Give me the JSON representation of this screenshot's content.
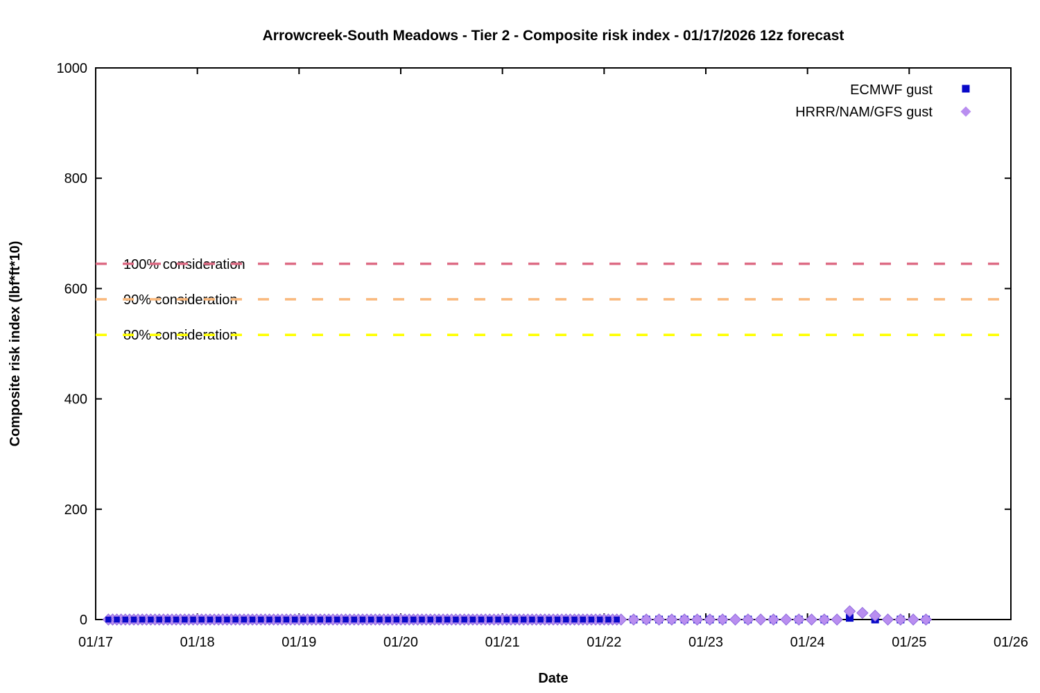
{
  "page": {
    "background": "#ffffff"
  },
  "chart_data": {
    "type": "scatter",
    "title": "Arrowcreek-South Meadows - Tier 2 - Composite risk index - 01/17/2026 12z forecast",
    "xlabel": "Date",
    "ylabel": "Composite risk index (lbf*ft*10)",
    "x_tick_labels": [
      "01/17",
      "01/18",
      "01/19",
      "01/20",
      "01/21",
      "01/22",
      "01/23",
      "01/24",
      "01/25",
      "01/26"
    ],
    "x_range_days": [
      17,
      26
    ],
    "ylim": [
      0,
      1000
    ],
    "y_ticks": [
      0,
      200,
      400,
      600,
      800,
      1000
    ],
    "grid": false,
    "legend_position": "top-right-inside",
    "axis_color": "#000000",
    "thresholds": [
      {
        "label": "100% consideration",
        "value": 645,
        "color": "#dd6b84"
      },
      {
        "label": "90% consideration",
        "value": 580.5,
        "color": "#fab87c"
      },
      {
        "label": "80% consideration",
        "value": 516,
        "color": "#ffff00"
      }
    ],
    "series": [
      {
        "name": "ECMWF gust",
        "marker": "square",
        "color": "#0808c8",
        "dense_runs": [
          {
            "x_start": 17.125,
            "x_end": 22.17,
            "step_days": 0.08333,
            "y": 0
          }
        ],
        "points": [
          [
            22.29,
            0
          ],
          [
            22.415,
            0
          ],
          [
            22.54,
            0
          ],
          [
            22.665,
            0
          ],
          [
            22.79,
            0
          ],
          [
            22.915,
            0
          ],
          [
            23.04,
            0
          ],
          [
            23.165,
            0
          ],
          [
            23.415,
            0
          ],
          [
            23.665,
            0
          ],
          [
            23.915,
            0
          ],
          [
            24.165,
            0
          ],
          [
            24.415,
            3
          ],
          [
            24.665,
            0
          ],
          [
            24.915,
            0
          ],
          [
            25.165,
            0
          ]
        ]
      },
      {
        "name": "HRRR/NAM/GFS gust",
        "marker": "diamond",
        "color": "#b98ef0",
        "dense_runs": [
          {
            "x_start": 17.125,
            "x_end": 22.19,
            "step_days": 0.041667,
            "y": 0
          }
        ],
        "points": [
          [
            22.29,
            0
          ],
          [
            22.415,
            0
          ],
          [
            22.54,
            0
          ],
          [
            22.665,
            0
          ],
          [
            22.79,
            0
          ],
          [
            22.915,
            0
          ],
          [
            23.04,
            0
          ],
          [
            23.165,
            0
          ],
          [
            23.29,
            0
          ],
          [
            23.415,
            0
          ],
          [
            23.54,
            0
          ],
          [
            23.665,
            0
          ],
          [
            23.79,
            0
          ],
          [
            23.915,
            0
          ],
          [
            24.04,
            0
          ],
          [
            24.165,
            0
          ],
          [
            24.29,
            0
          ],
          [
            24.415,
            15
          ],
          [
            24.54,
            12
          ],
          [
            24.665,
            7
          ],
          [
            24.79,
            0
          ],
          [
            24.915,
            0
          ],
          [
            25.04,
            0
          ],
          [
            25.165,
            0
          ]
        ]
      }
    ]
  }
}
